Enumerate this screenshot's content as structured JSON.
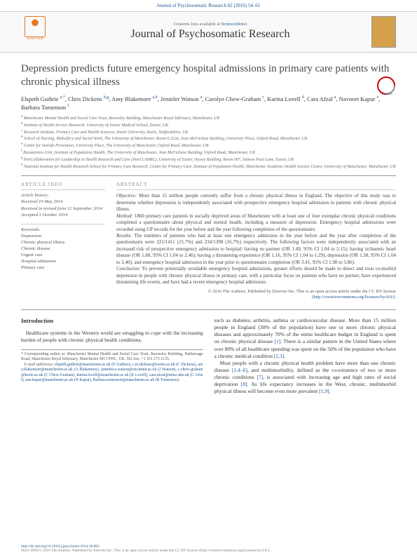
{
  "top_citation": "Journal of Psychosomatic Research 82 (2016) 54–61",
  "header": {
    "contents_prefix": "Contents lists available at ",
    "contents_link": "ScienceDirect",
    "journal_title": "Journal of Psychosomatic Research",
    "homepage_label": "journal homepage:",
    "elsevier_label": "ELSEVIER"
  },
  "title": "Depression predicts future emergency hospital admissions in primary care patients with chronic physical illness",
  "authors_html": "Elspeth Guthrie <sup>a,*</sup>, Chris Dickens <sup>b,g</sup>, Amy Blakemore <sup>a,h</sup>, Jennifer Watson <sup>a</sup>, Carolyn Chew-Graham <sup>c</sup>, Karina Lovell <sup>d</sup>, Cara Afzal <sup>a</sup>, Navneet Kapur <sup>e</sup>, Barbara Tomenson <sup>f</sup>",
  "affiliations": [
    "a Manchester Mental Health and Social Care Trust, Rawnsley Building, Manchester Royal Infirmary, Manchester, UK",
    "b Institute of Health Service Research, University of Exeter Medical School, Exeter, UK",
    "c Research Institute, Primary Care and Health Sciences, Keele University, Keele, Staffordshire, UK",
    "d School of Nursing, Midwifery and Social Work, The University of Manchester, Room 6.322a, Jean McFarlane Building, University Place, Oxford Road, Manchester, UK",
    "e Centre for Suicide Prevention, University Place, The University of Manchester, Oxford Road, Manchester, UK",
    "f Biostatistics Unit, Institute of Population Health, The University of Manchester, Jean McFarlane Building, Oxford Road, Manchester, UK",
    "g PenCollaboration for Leadership in Health Research and Care (PenCLAHRC), University of Exeter, Veysey Building, Room 007, Salmon Pool Lane, Exeter, UK",
    "h National Institute for Health Research School for Primary Care Research, Centre for Primary Care, Institute of Population Health, Manchester Academic Health Science Centre, University of Manchester, Manchester, UK"
  ],
  "article_info": {
    "head": "ARTICLE INFO",
    "history_label": "Article history:",
    "received": "Received 19 May 2014",
    "revised": "Received in revised form 12 September 2014",
    "accepted": "Accepted 3 October 2014",
    "keywords_label": "Keywords:",
    "keywords": [
      "Depression",
      "Chronic physical illness",
      "Chronic disease",
      "Urgent care",
      "Hospital admission",
      "Primary care"
    ]
  },
  "abstract": {
    "head": "ABSTRACT",
    "objective_label": "Objective:",
    "objective": " More than 15 million people currently suffer from a chronic physical illness in England. The objective of this study was to determine whether depression is independently associated with prospective emergency hospital admission in patients with chronic physical illness.",
    "method_label": "Method:",
    "method": " 1860 primary care patients in socially deprived areas of Manchester with at least one of four exemplar chronic physical conditions completed a questionnaire about physical and mental health, including a measure of depression. Emergency hospital admissions were recorded using GP records for the year before and the year following completion of the questionnaire.",
    "results_label": "Results:",
    "results": " The numbers of patients who had at least one emergency admission in the year before and the year after completion of the questionnaire were 221/1411 (15.7%) and 234/1398 (16.7%) respectively. The following factors were independently associated with an increased risk of prospective emergency admission to hospital: having no partner (OR 1.49, 95% CI 1.04 to 2.15); having ischaemic heart disease (OR 1.60, 95% CI 1.04 to 2.46); having a threatening experience (OR 1.16, 95% CI 1.04 to 1.29); depression (OR 1.58, 95% CI 1.04 to 2.40); and emergency hospital admission in the year prior to questionnaire completion (OR 3.41, 95% CI 1.98 to 5.86).",
    "conclusion_label": "Conclusion:",
    "conclusion": " To prevent potentially avoidable emergency hospital admissions, greater efforts should be made to detect and treat co-morbid depression in people with chronic physical illness in primary care, with a particular focus on patients who have no partner, have experienced threatening life events, and have had a recent emergency hospital admission.",
    "copyright": "© 2016 The Authors. Published by Elsevier Inc. This is an open access article under the CC BY license",
    "license_url": "(http://creativecommons.org/licenses/by/4.0/)."
  },
  "intro": {
    "head": "Introduction",
    "p1": "Healthcare systems in the Western world are struggling to cope with the increasing burden of people with chronic physical health conditions,",
    "p2a": "such as diabetes, arthritis, asthma or cardiovascular disease. More than 15 million people in England (30% of the population) have one or more chronic physical diseases and approximately 70% of the entire healthcare budget in England is spent on chronic physical disease ",
    "p2b": ". There is a similar pattern in the United States where over 80% of all healthcare spending was spent on the 50% of the population who have a chronic medical condition ",
    "p2c": ".",
    "p3a": "Most people with a chronic physical health problem have more than one chronic disease ",
    "p3b": ", and multimorbidity, defined as the co-existence of two or more chronic conditions ",
    "p3c": ", is associated with increasing age and high rates of social deprivation ",
    "p3d": ". As life expectancy increases in the West, chronic, multimorbid physical illness will become even more prevalent ",
    "p3e": ".",
    "refs": {
      "r1": "[1]",
      "r23": "[2,3]",
      "r146": "[1,4–6]",
      "r7": "[7]",
      "r8": "[8]",
      "r19": "[1,9]"
    }
  },
  "corresponding": {
    "star": "* ",
    "text": "Corresponding author at: Manchester Mental Health and Social Care Trust, Rawnsley Building, Hathersage Road, Manchester Royal Infirmary, Manchester M13 9WL, UK. Tel./fax: +1 161 273 2135.",
    "email_label": "E-mail addresses: ",
    "emails": "elspeth.guthrie@manchester.ac.uk (E Guthrie), c.m.dickens@exeter.ac.uk (C Dickens), amy.blakemore@manchester.ac.uk (A Blakemore), jennifer.a.watson@stu.mmu.ac.uk (J Watson), c.chew-graham@keele.ac.uk (C Chew-Graham), karina.lovell@manchester.ac.uk (K Lovell), cara.afzal@mhsc.nhs.uk (C Afzal), nav.kapur@manchester.ac.uk (N Kapur), Barbara.tomenson@manchester.ac.uk (B Tomenson)."
  },
  "footer": {
    "doi": "http://dx.doi.org/10.1016/j.jpsychores.2014.10.002",
    "issn": "0022-3999/© 2016 The Authors. Published by Elsevier Inc. This is an open access article under the CC BY license (http://creativecommons.org/licenses/by/4.0/)."
  },
  "colors": {
    "link": "#1a5490",
    "elsevier_orange": "#e87722",
    "text": "#333333",
    "muted": "#666666",
    "rule": "#999999"
  }
}
